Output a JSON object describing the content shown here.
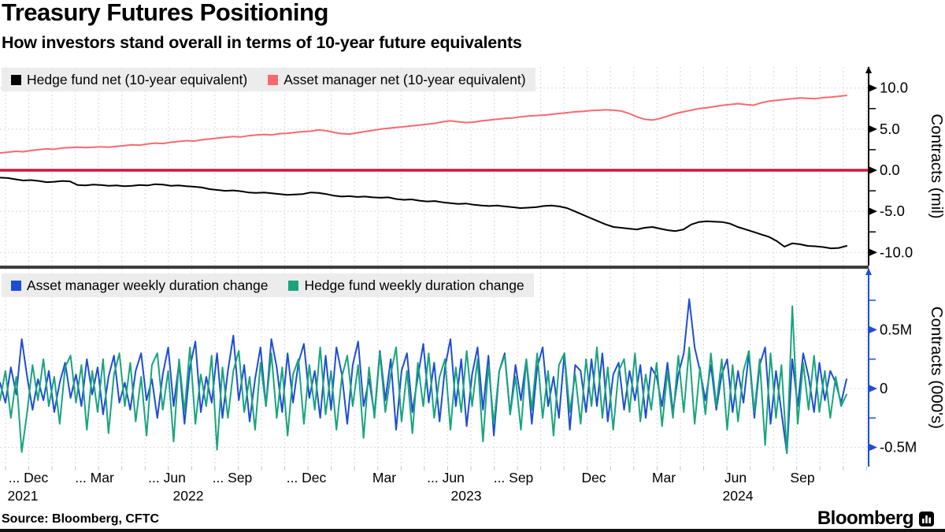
{
  "header": {
    "title": "Treasury Futures Positioning",
    "subtitle": "How investors stand overall in terms of 10-year future equivalents"
  },
  "source_line": "Source: Bloomberg, CFTC",
  "logo": {
    "text": "Bloomberg",
    "icon": "bar-chart-icon"
  },
  "colors": {
    "hedge_fund_net": "#000000",
    "asset_manager_net": "#f8696e",
    "zero_line": "#d6113f",
    "asset_manager_duration": "#1d4dd4",
    "hedge_fund_duration": "#18a57c",
    "grid": "#d8d8d8",
    "legend_background": "#ececec",
    "panel_divider": "#3d3d3d"
  },
  "x_axis": {
    "month_labels": [
      "... Dec",
      "... Mar",
      "... Jun",
      "... Sep",
      "... Dec",
      "Mar",
      "... Jun",
      "... Sep",
      "Dec",
      "Mar",
      "Jun",
      "Sep"
    ],
    "year_labels": [
      "2021",
      "2022",
      "2023",
      "2024"
    ]
  },
  "chart_data": [
    {
      "type": "line",
      "panel": "top",
      "ylabel": "Contracts (mil)",
      "ylim": [
        -12.6,
        12.6
      ],
      "grid": true,
      "legend_position": "top-left",
      "y_ticks": [
        {
          "v": 10,
          "label": "10.0"
        },
        {
          "v": 5,
          "label": "5.0"
        },
        {
          "v": 0,
          "label": "0.0"
        },
        {
          "v": -5,
          "label": "-5.0"
        },
        {
          "v": -10,
          "label": "-10.0"
        }
      ],
      "zero_line": true,
      "series": [
        {
          "name": "Hedge fund net (10-year equivalent)",
          "color": "#000000",
          "values": [
            -0.9,
            -0.95,
            -1.1,
            -1.25,
            -1.2,
            -1.3,
            -1.45,
            -1.4,
            -1.3,
            -1.35,
            -1.8,
            -1.85,
            -1.75,
            -1.8,
            -1.9,
            -1.85,
            -1.95,
            -1.9,
            -1.8,
            -1.85,
            -1.7,
            -1.75,
            -1.9,
            -1.85,
            -1.95,
            -2.0,
            -2.1,
            -2.3,
            -2.4,
            -2.5,
            -2.45,
            -2.55,
            -2.7,
            -2.75,
            -2.7,
            -2.8,
            -2.9,
            -3.0,
            -2.95,
            -2.9,
            -2.7,
            -2.75,
            -2.9,
            -3.1,
            -3.2,
            -3.15,
            -3.25,
            -3.2,
            -3.3,
            -3.35,
            -3.3,
            -3.5,
            -3.6,
            -3.55,
            -3.7,
            -3.8,
            -3.75,
            -3.9,
            -4.0,
            -4.1,
            -4.05,
            -4.2,
            -4.3,
            -4.35,
            -4.3,
            -4.4,
            -4.5,
            -4.6,
            -4.55,
            -4.5,
            -4.35,
            -4.3,
            -4.4,
            -4.6,
            -5.0,
            -5.4,
            -5.8,
            -6.2,
            -6.6,
            -6.9,
            -7.0,
            -7.1,
            -7.2,
            -7.0,
            -6.9,
            -7.1,
            -7.3,
            -7.4,
            -7.2,
            -6.6,
            -6.3,
            -6.2,
            -6.25,
            -6.3,
            -6.5,
            -6.9,
            -7.2,
            -7.5,
            -7.8,
            -8.1,
            -8.6,
            -9.3,
            -8.9,
            -9.0,
            -9.2,
            -9.25,
            -9.35,
            -9.5,
            -9.45,
            -9.2
          ]
        },
        {
          "name": "Asset manager net (10-year equivalent)",
          "color": "#f8696e",
          "values": [
            2.1,
            2.2,
            2.3,
            2.25,
            2.4,
            2.5,
            2.6,
            2.55,
            2.7,
            2.75,
            2.8,
            2.75,
            2.8,
            2.85,
            2.8,
            2.9,
            3.0,
            3.1,
            3.05,
            3.2,
            3.3,
            3.25,
            3.4,
            3.5,
            3.6,
            3.55,
            3.7,
            3.8,
            3.9,
            4.0,
            4.1,
            4.05,
            4.2,
            4.3,
            4.35,
            4.3,
            4.45,
            4.5,
            4.6,
            4.7,
            4.75,
            4.9,
            4.8,
            4.6,
            4.45,
            4.4,
            4.55,
            4.7,
            4.85,
            5.0,
            5.1,
            5.2,
            5.3,
            5.4,
            5.5,
            5.6,
            5.7,
            5.9,
            6.0,
            5.9,
            5.8,
            5.85,
            6.0,
            6.1,
            6.2,
            6.3,
            6.35,
            6.5,
            6.6,
            6.65,
            6.7,
            6.8,
            6.9,
            7.0,
            7.1,
            7.15,
            7.25,
            7.3,
            7.35,
            7.3,
            7.2,
            6.9,
            6.5,
            6.2,
            6.1,
            6.3,
            6.6,
            6.9,
            7.1,
            7.3,
            7.5,
            7.6,
            7.75,
            7.9,
            8.0,
            8.1,
            8.0,
            7.9,
            8.2,
            8.4,
            8.5,
            8.6,
            8.7,
            8.8,
            8.75,
            8.7,
            8.85,
            8.9,
            9.0,
            9.1
          ]
        }
      ]
    },
    {
      "type": "line",
      "panel": "bottom",
      "ylabel": "Contracts (000's)",
      "ylim": [
        -0.84,
        0.84
      ],
      "grid": true,
      "legend_position": "top-left",
      "y_ticks": [
        {
          "v": 0.5,
          "label": "0.5M"
        },
        {
          "v": 0,
          "label": "0"
        },
        {
          "v": -0.5,
          "label": "-0.5M"
        }
      ],
      "zero_line": false,
      "series": [
        {
          "name": "Asset manager weekly duration change",
          "color": "#1d4dd4",
          "values": [
            0.05,
            -0.12,
            0.18,
            -0.05,
            0.42,
            0.1,
            -0.18,
            0.08,
            -0.1,
            0.15,
            -0.2,
            0.05,
            0.22,
            -0.08,
            0.12,
            -0.15,
            0.25,
            -0.05,
            0.18,
            -0.22,
            0.1,
            0.28,
            -0.12,
            0.05,
            -0.18,
            0.15,
            0.3,
            -0.1,
            0.08,
            -0.25,
            0.12,
            0.35,
            -0.15,
            0.22,
            -0.3,
            0.18,
            0.4,
            -0.2,
            0.1,
            -0.12,
            0.3,
            -0.25,
            0.15,
            0.45,
            -0.1,
            0.2,
            -0.28,
            0.08,
            0.35,
            -0.15,
            0.42,
            0.18,
            -0.2,
            0.3,
            -0.12,
            0.22,
            0.38,
            -0.08,
            0.15,
            -0.25,
            0.28,
            -0.18,
            0.35,
            0.12,
            -0.3,
            0.2,
            0.4,
            -0.15,
            0.08,
            -0.22,
            0.32,
            -0.1,
            0.25,
            -0.35,
            0.15,
            0.3,
            -0.2,
            0.1,
            0.38,
            -0.12,
            0.22,
            -0.28,
            0.18,
            0.42,
            -0.15,
            0.25,
            -0.32,
            0.12,
            0.35,
            -0.18,
            0.28,
            -0.4,
            0.15,
            0.3,
            -0.22,
            0.2,
            -0.1,
            0.25,
            -0.3,
            0.18,
            0.35,
            -0.15,
            0.1,
            -0.25,
            0.3,
            -0.35,
            0.2,
            0.15,
            -0.2,
            0.25,
            -0.15,
            0.3,
            -0.28,
            0.12,
            0.22,
            -0.18,
            0.15,
            -0.1,
            0.2,
            -0.25,
            0.18,
            0.1,
            -0.15,
            0.22,
            -0.2,
            0.12,
            0.3,
            0.76,
            0.35,
            0.15,
            -0.1,
            0.2,
            -0.18,
            0.12,
            0.25,
            -0.2,
            0.15,
            -0.12,
            0.3,
            -0.25,
            0.2,
            0.35,
            -0.3,
            0.15,
            -0.2,
            -0.55,
            0.25,
            -0.15,
            0.3,
            0.1,
            -0.2,
            0.22,
            -0.1,
            0.15,
            0.05,
            -0.12,
            0.08
          ]
        },
        {
          "name": "Hedge fund weekly duration change",
          "color": "#18a57c",
          "values": [
            -0.1,
            0.15,
            -0.25,
            0.1,
            -0.54,
            -0.2,
            0.2,
            -0.1,
            0.25,
            -0.15,
            0.1,
            -0.3,
            0.18,
            0.28,
            -0.12,
            0.2,
            -0.35,
            0.15,
            -0.2,
            0.25,
            -0.38,
            0.12,
            0.3,
            -0.15,
            0.22,
            -0.28,
            0.1,
            -0.4,
            0.2,
            0.3,
            -0.18,
            0.15,
            -0.45,
            0.25,
            -0.2,
            0.35,
            -0.3,
            0.12,
            -0.15,
            0.28,
            -0.52,
            0.18,
            -0.25,
            0.15,
            0.32,
            -0.2,
            0.1,
            -0.35,
            0.22,
            -0.15,
            0.3,
            -0.25,
            0.18,
            -0.4,
            0.12,
            0.25,
            -0.3,
            0.2,
            -0.18,
            0.35,
            -0.22,
            0.15,
            -0.35,
            0.1,
            0.28,
            -0.15,
            0.2,
            -0.42,
            0.18,
            -0.25,
            0.3,
            -0.2,
            0.12,
            0.35,
            -0.28,
            0.15,
            -0.38,
            0.22,
            -0.15,
            0.3,
            -0.25,
            0.1,
            0.25,
            -0.35,
            0.18,
            -0.2,
            0.32,
            -0.15,
            0.25,
            -0.45,
            0.2,
            -0.3,
            0.15,
            0.28,
            -0.22,
            0.1,
            -0.35,
            0.25,
            -0.18,
            0.3,
            -0.25,
            0.15,
            -0.4,
            0.2,
            0.3,
            -0.2,
            0.12,
            -0.3,
            0.25,
            -0.15,
            0.35,
            -0.25,
            0.18,
            -0.35,
            0.15,
            0.25,
            -0.2,
            0.3,
            -0.28,
            0.12,
            -0.18,
            0.22,
            -0.32,
            0.15,
            -0.25,
            0.28,
            -0.2,
            0.35,
            -0.3,
            0.18,
            -0.22,
            0.3,
            -0.15,
            0.25,
            -0.35,
            0.2,
            -0.28,
            0.15,
            0.32,
            -0.2,
            0.25,
            -0.48,
            0.3,
            -0.25,
            0.2,
            -0.55,
            0.7,
            -0.3,
            0.22,
            -0.18,
            0.28,
            -0.2,
            0.15,
            -0.25,
            0.1,
            -0.15,
            -0.05
          ]
        }
      ]
    }
  ]
}
